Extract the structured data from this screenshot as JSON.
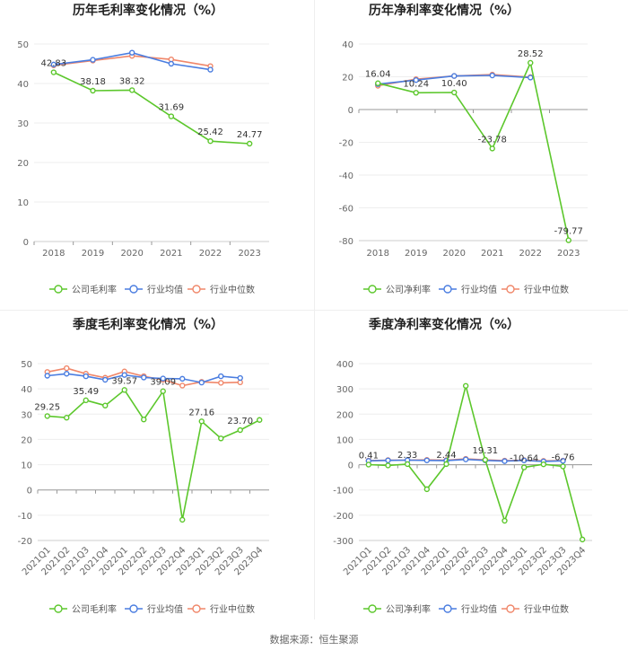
{
  "source_text": "数据来源：恒生聚源",
  "colors": {
    "company": "#5cc72c",
    "ind_avg": "#4a7de0",
    "ind_med": "#f0876a"
  },
  "chart_data": [
    {
      "type": "line",
      "title": "历年毛利率变化情况（%）",
      "categories": [
        "2018",
        "2019",
        "2020",
        "2021",
        "2022",
        "2023"
      ],
      "ylim": [
        0,
        50
      ],
      "yticks": [
        0,
        10,
        20,
        30,
        40,
        50
      ],
      "series": [
        {
          "name": "公司毛利率",
          "key": "company",
          "values": [
            42.83,
            38.18,
            38.32,
            31.69,
            25.42,
            24.77
          ]
        },
        {
          "name": "行业均值",
          "key": "ind_avg",
          "values": [
            44.8,
            46.0,
            47.8,
            45.0,
            43.5,
            null
          ]
        },
        {
          "name": "行业中位数",
          "key": "ind_med",
          "values": [
            44.6,
            45.8,
            47.0,
            46.1,
            44.4,
            null
          ]
        }
      ],
      "data_labels": [
        {
          "series": 0,
          "index": 0,
          "text": "42.83",
          "pos": "above"
        },
        {
          "series": 0,
          "index": 1,
          "text": "38.18",
          "pos": "above"
        },
        {
          "series": 0,
          "index": 2,
          "text": "38.32",
          "pos": "above"
        },
        {
          "series": 0,
          "index": 3,
          "text": "31.69",
          "pos": "above"
        },
        {
          "series": 0,
          "index": 4,
          "text": "25.42",
          "pos": "above"
        },
        {
          "series": 0,
          "index": 5,
          "text": "24.77",
          "pos": "above"
        }
      ],
      "legend": [
        "公司毛利率",
        "行业均值",
        "行业中位数"
      ],
      "rotate_xlabels": false
    },
    {
      "type": "line",
      "title": "历年净利率变化情况（%）",
      "categories": [
        "2018",
        "2019",
        "2020",
        "2021",
        "2022",
        "2023"
      ],
      "ylim": [
        -80,
        40
      ],
      "yticks": [
        -80,
        -60,
        -40,
        -20,
        0,
        20,
        40
      ],
      "series": [
        {
          "name": "公司净利率",
          "key": "company",
          "values": [
            16.04,
            10.24,
            10.4,
            -23.78,
            28.52,
            -79.77
          ]
        },
        {
          "name": "行业均值",
          "key": "ind_avg",
          "values": [
            15.5,
            18.0,
            20.5,
            20.8,
            19.5,
            null
          ]
        },
        {
          "name": "行业中位数",
          "key": "ind_med",
          "values": [
            14.5,
            18.5,
            20.5,
            21.3,
            19.8,
            null
          ]
        }
      ],
      "data_labels": [
        {
          "series": 0,
          "index": 0,
          "text": "16.04",
          "pos": "above"
        },
        {
          "series": 0,
          "index": 1,
          "text": "10.24",
          "pos": "above"
        },
        {
          "series": 0,
          "index": 2,
          "text": "10.40",
          "pos": "above"
        },
        {
          "series": 0,
          "index": 3,
          "text": "-23.78",
          "pos": "above"
        },
        {
          "series": 0,
          "index": 4,
          "text": "28.52",
          "pos": "above"
        },
        {
          "series": 0,
          "index": 5,
          "text": "-79.77",
          "pos": "above"
        }
      ],
      "legend": [
        "公司净利率",
        "行业均值",
        "行业中位数"
      ],
      "rotate_xlabels": false
    },
    {
      "type": "line",
      "title": "季度毛利率变化情况（%）",
      "categories": [
        "2021Q1",
        "2021Q2",
        "2021Q3",
        "2021Q4",
        "2022Q1",
        "2022Q2",
        "2022Q3",
        "2022Q4",
        "2023Q1",
        "2023Q2",
        "2023Q3",
        "2023Q4"
      ],
      "ylim": [
        -20,
        50
      ],
      "yticks": [
        -20,
        -10,
        0,
        10,
        20,
        30,
        40,
        50
      ],
      "series": [
        {
          "name": "公司毛利率",
          "key": "company",
          "values": [
            29.25,
            28.6,
            35.49,
            33.4,
            39.57,
            27.9,
            39.09,
            -11.8,
            27.16,
            20.4,
            23.7,
            27.7
          ]
        },
        {
          "name": "行业均值",
          "key": "ind_avg",
          "values": [
            45.2,
            46.0,
            45.0,
            43.6,
            45.5,
            44.5,
            44.1,
            44.0,
            42.5,
            45.0,
            44.3,
            null
          ]
        },
        {
          "name": "行业中位数",
          "key": "ind_med",
          "values": [
            46.7,
            48.2,
            46.0,
            44.4,
            46.9,
            45.0,
            43.6,
            41.3,
            42.8,
            42.4,
            42.6,
            null
          ]
        }
      ],
      "data_labels": [
        {
          "series": 0,
          "index": 0,
          "text": "29.25",
          "pos": "above"
        },
        {
          "series": 0,
          "index": 2,
          "text": "35.49",
          "pos": "above"
        },
        {
          "series": 0,
          "index": 4,
          "text": "39.57",
          "pos": "above"
        },
        {
          "series": 0,
          "index": 6,
          "text": "39.09",
          "pos": "above"
        },
        {
          "series": 0,
          "index": 8,
          "text": "27.16",
          "pos": "above"
        },
        {
          "series": 0,
          "index": 10,
          "text": "23.70",
          "pos": "above"
        }
      ],
      "legend": [
        "公司毛利率",
        "行业均值",
        "行业中位数"
      ],
      "rotate_xlabels": true
    },
    {
      "type": "line",
      "title": "季度净利率变化情况（%）",
      "categories": [
        "2021Q1",
        "2021Q2",
        "2021Q3",
        "2021Q4",
        "2022Q1",
        "2022Q2",
        "2022Q3",
        "2022Q4",
        "2023Q1",
        "2023Q2",
        "2023Q3",
        "2023Q4"
      ],
      "ylim": [
        -300,
        400
      ],
      "yticks": [
        -300,
        -200,
        -100,
        0,
        100,
        200,
        300,
        400
      ],
      "series": [
        {
          "name": "公司净利率",
          "key": "company",
          "values": [
            0.41,
            -3,
            2.33,
            -97,
            2.44,
            312,
            19.31,
            -222,
            -10.64,
            1.5,
            -6.76,
            -296
          ]
        },
        {
          "name": "行业均值",
          "key": "ind_avg",
          "values": [
            15,
            17,
            18,
            17,
            16,
            21,
            17,
            14,
            17,
            13,
            15,
            null
          ]
        },
        {
          "name": "行业中位数",
          "key": "ind_med",
          "values": [
            16,
            18,
            18,
            19,
            18,
            23,
            19,
            16,
            18,
            15,
            16,
            null
          ]
        }
      ],
      "data_labels": [
        {
          "series": 0,
          "index": 0,
          "text": "0.41",
          "pos": "above"
        },
        {
          "series": 0,
          "index": 2,
          "text": "2.33",
          "pos": "above"
        },
        {
          "series": 0,
          "index": 4,
          "text": "2.44",
          "pos": "above"
        },
        {
          "series": 0,
          "index": 6,
          "text": "19.31",
          "pos": "above"
        },
        {
          "series": 0,
          "index": 8,
          "text": "-10.64",
          "pos": "above"
        },
        {
          "series": 0,
          "index": 10,
          "text": "-6.76",
          "pos": "above"
        }
      ],
      "legend": [
        "公司净利率",
        "行业均值",
        "行业中位数"
      ],
      "rotate_xlabels": true
    }
  ]
}
